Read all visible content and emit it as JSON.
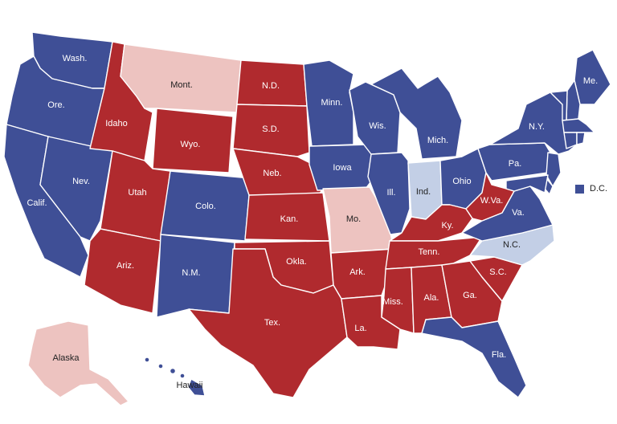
{
  "colors": {
    "dem_strong": "#3f4f96",
    "dem_lean": "#c3cfe6",
    "rep_strong": "#b02a2e",
    "rep_lean": "#edc3c0"
  },
  "states": [
    {
      "id": "WA",
      "label": "Wash.",
      "status": "dem_strong"
    },
    {
      "id": "OR",
      "label": "Ore.",
      "status": "dem_strong"
    },
    {
      "id": "CA",
      "label": "Calif.",
      "status": "dem_strong"
    },
    {
      "id": "NV",
      "label": "Nev.",
      "status": "dem_strong"
    },
    {
      "id": "ID",
      "label": "Idaho",
      "status": "rep_strong"
    },
    {
      "id": "MT",
      "label": "Mont.",
      "status": "rep_lean"
    },
    {
      "id": "WY",
      "label": "Wyo.",
      "status": "rep_strong"
    },
    {
      "id": "UT",
      "label": "Utah",
      "status": "rep_strong"
    },
    {
      "id": "AZ",
      "label": "Ariz.",
      "status": "rep_strong"
    },
    {
      "id": "CO",
      "label": "Colo.",
      "status": "dem_strong"
    },
    {
      "id": "NM",
      "label": "N.M.",
      "status": "dem_strong"
    },
    {
      "id": "ND",
      "label": "N.D.",
      "status": "rep_strong"
    },
    {
      "id": "SD",
      "label": "S.D.",
      "status": "rep_strong"
    },
    {
      "id": "NE",
      "label": "Neb.",
      "status": "rep_strong"
    },
    {
      "id": "KS",
      "label": "Kan.",
      "status": "rep_strong"
    },
    {
      "id": "OK",
      "label": "Okla.",
      "status": "rep_strong"
    },
    {
      "id": "TX",
      "label": "Tex.",
      "status": "rep_strong"
    },
    {
      "id": "MN",
      "label": "Minn.",
      "status": "dem_strong"
    },
    {
      "id": "IA",
      "label": "Iowa",
      "status": "dem_strong"
    },
    {
      "id": "MO",
      "label": "Mo.",
      "status": "rep_lean"
    },
    {
      "id": "AR",
      "label": "Ark.",
      "status": "rep_strong"
    },
    {
      "id": "LA",
      "label": "La.",
      "status": "rep_strong"
    },
    {
      "id": "WI",
      "label": "Wis.",
      "status": "dem_strong"
    },
    {
      "id": "IL",
      "label": "Ill.",
      "status": "dem_strong"
    },
    {
      "id": "MI",
      "label": "Mich.",
      "status": "dem_strong"
    },
    {
      "id": "IN",
      "label": "Ind.",
      "status": "dem_lean"
    },
    {
      "id": "OH",
      "label": "Ohio",
      "status": "dem_strong"
    },
    {
      "id": "KY",
      "label": "Ky.",
      "status": "rep_strong"
    },
    {
      "id": "TN",
      "label": "Tenn.",
      "status": "rep_strong"
    },
    {
      "id": "MS",
      "label": "Miss.",
      "status": "rep_strong"
    },
    {
      "id": "AL",
      "label": "Ala.",
      "status": "rep_strong"
    },
    {
      "id": "GA",
      "label": "Ga.",
      "status": "rep_strong"
    },
    {
      "id": "FL",
      "label": "Fla.",
      "status": "dem_strong"
    },
    {
      "id": "SC",
      "label": "S.C.",
      "status": "rep_strong"
    },
    {
      "id": "NC",
      "label": "N.C.",
      "status": "dem_lean"
    },
    {
      "id": "VA",
      "label": "Va.",
      "status": "dem_strong"
    },
    {
      "id": "WV",
      "label": "W.Va.",
      "status": "rep_strong"
    },
    {
      "id": "PA",
      "label": "Pa.",
      "status": "dem_strong"
    },
    {
      "id": "NY",
      "label": "N.Y.",
      "status": "dem_strong"
    },
    {
      "id": "ME",
      "label": "Me.",
      "status": "dem_strong"
    },
    {
      "id": "NH",
      "label": "",
      "status": "dem_strong"
    },
    {
      "id": "VT",
      "label": "",
      "status": "dem_strong"
    },
    {
      "id": "MA",
      "label": "",
      "status": "dem_strong"
    },
    {
      "id": "CT",
      "label": "",
      "status": "dem_strong"
    },
    {
      "id": "RI",
      "label": "",
      "status": "dem_strong"
    },
    {
      "id": "NJ",
      "label": "",
      "status": "dem_strong"
    },
    {
      "id": "DE",
      "label": "",
      "status": "dem_strong"
    },
    {
      "id": "MD",
      "label": "",
      "status": "dem_strong"
    },
    {
      "id": "AK",
      "label": "Alaska",
      "status": "rep_lean"
    },
    {
      "id": "HI",
      "label": "Hawaii",
      "status": "dem_strong"
    }
  ],
  "dc": {
    "label": "D.C.",
    "status": "dem_strong"
  }
}
